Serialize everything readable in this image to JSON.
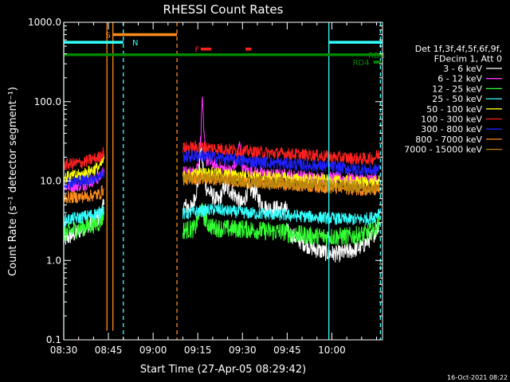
{
  "chart_data": {
    "type": "line",
    "title": "RHESSI Count Rates",
    "xlabel": "Start Time (27-Apr-05 08:29:42)",
    "ylabel": "Count Rate (s⁻¹ detector segment⁻¹)",
    "y_scale": "log",
    "ylim": [
      0.1,
      1000.0
    ],
    "xlim_minutes": [
      0,
      107
    ],
    "x_ticks": [
      {
        "min": 0,
        "label": "08:30"
      },
      {
        "min": 15,
        "label": "08:45"
      },
      {
        "min": 30,
        "label": "09:00"
      },
      {
        "min": 45,
        "label": "09:15"
      },
      {
        "min": 60,
        "label": "09:30"
      },
      {
        "min": 75,
        "label": "09:45"
      },
      {
        "min": 90,
        "label": "10:00"
      }
    ],
    "y_ticks": [
      {
        "v": 0.1,
        "label": "0.1"
      },
      {
        "v": 1,
        "label": "1.0"
      },
      {
        "v": 10,
        "label": "10.0"
      },
      {
        "v": 100,
        "label": "100.0"
      },
      {
        "v": 1000,
        "label": "1000.0"
      }
    ],
    "legend_header": [
      "Det 1f,3f,4f,5f,6f,9f,",
      "FDecim 1, Att 0"
    ],
    "legend_placement": "right",
    "footer": "16-Oct-2021 08:22",
    "series": [
      {
        "name": "3 - 6 keV",
        "color": "#ffffff",
        "segments": [
          {
            "x": [
              0,
              4,
              8,
              12,
              13.5
            ],
            "y": [
              1.8,
              2.2,
              2.8,
              3.5,
              5.0
            ]
          },
          {
            "x": [
              40,
              43,
              45,
              46,
              47,
              48,
              50,
              52,
              54,
              57,
              60,
              62,
              64,
              66,
              68,
              72,
              75
            ],
            "y": [
              5.0,
              4.5,
              9.0,
              28,
              12,
              8,
              6.5,
              5.5,
              8.5,
              7.0,
              5.0,
              8.0,
              7.5,
              5.5,
              4.5,
              4.5,
              4.4
            ]
          },
          {
            "x": [
              75,
              80,
              84,
              88,
              92,
              96,
              100,
              103,
              106
            ],
            "y": [
              2.3,
              1.7,
              1.4,
              1.25,
              1.2,
              1.3,
              1.5,
              1.9,
              2.8
            ]
          }
        ]
      },
      {
        "name": "6 - 12 keV",
        "color": "#ff33ff",
        "segments": [
          {
            "x": [
              0,
              6,
              12,
              13.5
            ],
            "y": [
              8.5,
              8.8,
              11,
              14
            ]
          },
          {
            "x": [
              40,
              44,
              45,
              46,
              46.5,
              47,
              48,
              52,
              56,
              58,
              59,
              60,
              64,
              70,
              75,
              80,
              85,
              90,
              95,
              100,
              104,
              106
            ],
            "y": [
              13,
              13,
              16,
              35,
              120,
              40,
              18,
              15,
              13.5,
              17,
              30,
              14,
              13,
              12,
              12,
              11.5,
              11,
              11,
              10.8,
              10.5,
              10.5,
              11
            ]
          }
        ]
      },
      {
        "name": "12 - 25 keV",
        "color": "#33ff33",
        "segments": [
          {
            "x": [
              0,
              6,
              12,
              13.5
            ],
            "y": [
              2.2,
              2.6,
              3.0,
              3.8
            ]
          },
          {
            "x": [
              40,
              44,
              46,
              48,
              50,
              55,
              60,
              65,
              70,
              75
            ],
            "y": [
              2.4,
              2.5,
              4.5,
              3.0,
              2.6,
              2.5,
              2.5,
              2.4,
              2.3,
              2.3
            ]
          },
          {
            "x": [
              75,
              80,
              85,
              90,
              95,
              100,
              104,
              106
            ],
            "y": [
              2.2,
              2.1,
              2.0,
              2.0,
              2.0,
              2.1,
              2.4,
              3.2
            ]
          }
        ]
      },
      {
        "name": "25 - 50 keV",
        "color": "#33ffff",
        "segments": [
          {
            "x": [
              0,
              6,
              12,
              13.5
            ],
            "y": [
              3.2,
              3.5,
              4.0,
              4.6
            ]
          },
          {
            "x": [
              40,
              46,
              50,
              55,
              60,
              65,
              70,
              75,
              80,
              85,
              90,
              95,
              100,
              104,
              106
            ],
            "y": [
              3.8,
              4.2,
              4.4,
              4.2,
              4.0,
              3.9,
              3.8,
              3.7,
              3.6,
              3.5,
              3.4,
              3.3,
              3.3,
              3.5,
              4.2
            ]
          }
        ]
      },
      {
        "name": "50 - 100 keV",
        "color": "#ffff00",
        "segments": [
          {
            "x": [
              0,
              6,
              12,
              13.5
            ],
            "y": [
              11,
              12,
              15,
              19
            ]
          },
          {
            "x": [
              40,
              46,
              50,
              55,
              60,
              65,
              70,
              75,
              80,
              85,
              90,
              95,
              100,
              104,
              106
            ],
            "y": [
              11.5,
              12.5,
              12.5,
              12.0,
              11.5,
              11.3,
              11.0,
              10.8,
              10.5,
              10.3,
              10.0,
              9.8,
              9.6,
              9.5,
              10.0
            ]
          }
        ]
      },
      {
        "name": "100 - 300 keV",
        "color": "#ff2020",
        "segments": [
          {
            "x": [
              0,
              6,
              12,
              13.5
            ],
            "y": [
              16,
              17,
              20,
              24
            ]
          },
          {
            "x": [
              40,
              46,
              50,
              55,
              60,
              65,
              70,
              75,
              80,
              85,
              90,
              95,
              100,
              104,
              106
            ],
            "y": [
              26,
              27,
              26,
              25,
              24,
              23,
              22.5,
              22,
              21.5,
              21,
              20,
              19.5,
              19,
              19.5,
              22
            ]
          }
        ]
      },
      {
        "name": "300 - 800 keV",
        "color": "#2020ff",
        "segments": [
          {
            "x": [
              0,
              6,
              12,
              13.5
            ],
            "y": [
              9.5,
              10,
              11.5,
              13
            ]
          },
          {
            "x": [
              40,
              46,
              50,
              55,
              60,
              65,
              70,
              75,
              80,
              85,
              90,
              95,
              100,
              104,
              106
            ],
            "y": [
              20,
              21,
              20,
              19,
              18,
              17.5,
              17,
              16.5,
              16,
              15.5,
              15,
              14.5,
              14,
              13.5,
              14.5
            ]
          }
        ]
      },
      {
        "name": "800 - 7000 keV",
        "color": "#ff8c1a",
        "segments": [
          {
            "x": [
              0,
              6,
              12,
              13.5
            ],
            "y": [
              6.2,
              6.3,
              6.8,
              8.0
            ]
          },
          {
            "x": [
              40,
              46,
              50,
              55,
              60,
              65,
              70,
              75,
              80,
              85,
              90,
              95,
              100,
              104,
              106
            ],
            "y": [
              10.5,
              10.8,
              10.5,
              10.2,
              9.8,
              9.5,
              9.2,
              9.0,
              8.8,
              8.5,
              8.2,
              8.0,
              7.8,
              7.6,
              8.0
            ]
          }
        ]
      },
      {
        "name": "7000 - 15000 keV",
        "color": "#b8860b",
        "segments": [
          {
            "x": [
              40,
              46,
              50,
              55,
              60,
              65,
              70,
              75,
              80,
              85,
              90,
              95,
              100,
              104,
              106
            ],
            "y": [
              10.5,
              11.0,
              10.8,
              10.4,
              10.0,
              9.8,
              9.6,
              9.4,
              9.2,
              9.0,
              8.8,
              8.6,
              8.4,
              8.2,
              8.6
            ]
          }
        ]
      }
    ],
    "annotations": {
      "bars": [
        {
          "label": "S",
          "color": "#ff8c1a",
          "x0": 16.5,
          "x1": 38,
          "y": 700,
          "label_x": 14
        },
        {
          "label": "N",
          "color": "#33ffff",
          "x0": 0,
          "x1": 20,
          "y": 560,
          "label_x": 23
        },
        {
          "label": "",
          "color": "#33ffff",
          "x0": 89,
          "x1": 107,
          "y": 560,
          "label_x": null
        },
        {
          "label": "",
          "color": "#008800",
          "x0": 0,
          "x1": 107,
          "y": 390,
          "label_x": null
        },
        {
          "label": "F",
          "color": "#ff2020",
          "x0": 46,
          "x1": 49.5,
          "y": 460,
          "label_x": 44
        },
        {
          "label": "",
          "color": "#ff2020",
          "x0": 61,
          "x1": 63,
          "y": 460,
          "label_x": null
        },
        {
          "label": "",
          "color": "#008800",
          "x0": 104,
          "x1": 106.5,
          "y": 315,
          "label_x": null
        }
      ],
      "bar_labels_right": [
        {
          "label": "RD8",
          "color": "#008800",
          "y": 390
        },
        {
          "label": "RD4",
          "color": "#008800",
          "y": 315,
          "x": 97
        }
      ],
      "vlines": [
        {
          "x": 0,
          "color": "#33ffff",
          "dash": false,
          "ymin": 0.1
        },
        {
          "x": 20,
          "color": "#33ffff",
          "dash": true,
          "ymin": 0.1
        },
        {
          "x": 89,
          "color": "#33ffff",
          "dash": false,
          "ymin": 0.1
        },
        {
          "x": 106.3,
          "color": "#33ffff",
          "dash": true,
          "ymin": 0.1
        },
        {
          "x": 14.5,
          "color": "#ff8c1a",
          "dash": false,
          "ymin": 0.13
        },
        {
          "x": 16.5,
          "color": "#ff8c1a",
          "dash": false,
          "ymin": 0.13
        },
        {
          "x": 38,
          "color": "#ff8c1a",
          "dash": true,
          "ymin": 0.1
        }
      ]
    }
  }
}
